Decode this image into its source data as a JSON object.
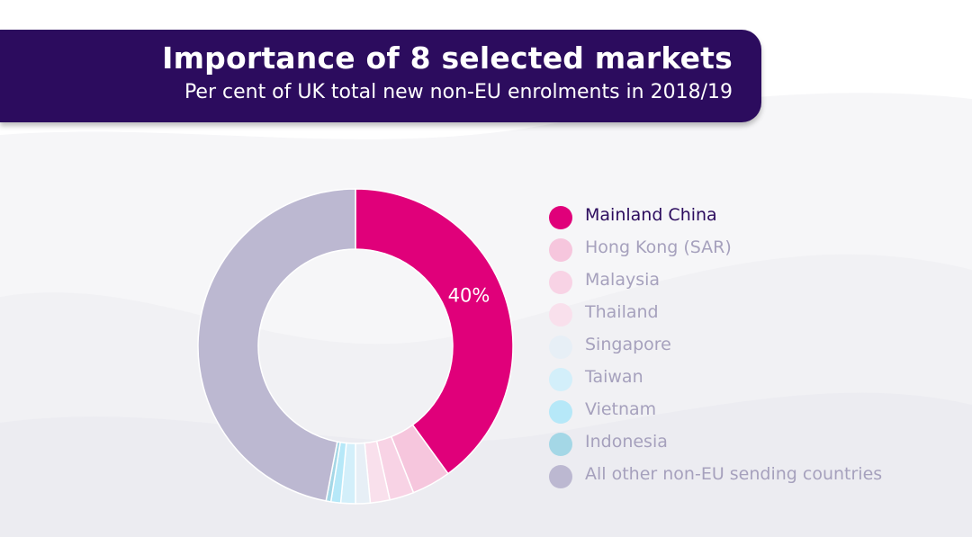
{
  "header": {
    "title": "Importance of 8 selected markets",
    "subtitle": "Per cent of UK total new non-EU enrolments in 2018/19"
  },
  "colors": {
    "banner": "#2c0c5e",
    "highlight": "#e0007a",
    "muted_text": "#a6a1bd"
  },
  "chart_data": {
    "type": "pie",
    "variant": "donut",
    "title": "Importance of 8 selected markets",
    "subtitle": "Per cent of UK total new non-EU enrolments in 2018/19",
    "unit": "%",
    "legend_position": "right",
    "slices": [
      {
        "label": "Mainland China",
        "value": 40,
        "color": "#e0007a",
        "data_label": "40%",
        "highlighted": true
      },
      {
        "label": "Hong Kong (SAR)",
        "value": 4,
        "color": "#f6c6dd"
      },
      {
        "label": "Malaysia",
        "value": 2.5,
        "color": "#f8d3e5"
      },
      {
        "label": "Thailand",
        "value": 2,
        "color": "#f9e0ec"
      },
      {
        "label": "Singapore",
        "value": 1.5,
        "color": "#e7eff6"
      },
      {
        "label": "Taiwan",
        "value": 1.5,
        "color": "#d3effa"
      },
      {
        "label": "Vietnam",
        "value": 1,
        "color": "#b6e8f8"
      },
      {
        "label": "Indonesia",
        "value": 0.5,
        "color": "#a4d7e6"
      },
      {
        "label": "All other non-EU sending countries",
        "value": 47,
        "color": "#bcb8d1"
      }
    ]
  }
}
